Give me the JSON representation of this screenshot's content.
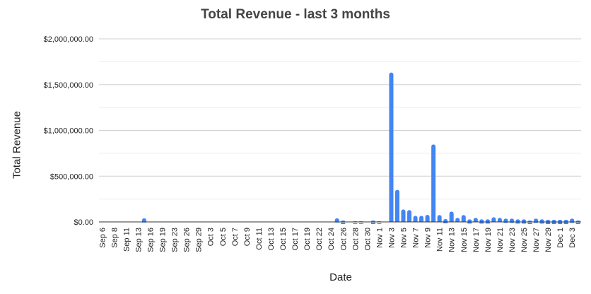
{
  "chart_data": {
    "type": "bar",
    "title": "Total Revenue - last 3 months",
    "xlabel": "Date",
    "ylabel": "Total Revenue",
    "ylim": [
      0,
      2000000
    ],
    "y_ticks": [
      0,
      500000,
      1000000,
      1500000,
      2000000
    ],
    "y_tick_labels": [
      "$0.00",
      "$500,000.00",
      "$1,000,000.00",
      "$1,500,000.00",
      "$2,000,000.00"
    ],
    "grid": true,
    "legend": "none",
    "bar_color": "#4285f4",
    "x_tick_labels": [
      "Sep 6",
      "Sep 8",
      "Sep 11",
      "Sep 13",
      "Sep 16",
      "Sep 19",
      "Sep 23",
      "Sep 26",
      "Sep 29",
      "Oct 3",
      "Oct 5",
      "Oct 7",
      "Oct 9",
      "Oct 11",
      "Oct 13",
      "Oct 15",
      "Oct 17",
      "Oct 19",
      "Oct 22",
      "Oct 24",
      "Oct 26",
      "Oct 28",
      "Oct 30",
      "Nov 1",
      "Nov 3",
      "Nov 5",
      "Nov 7",
      "Nov 9",
      "Nov 11",
      "Nov 13",
      "Nov 15",
      "Nov 17",
      "Nov 19",
      "Nov 21",
      "Nov 23",
      "Nov 25",
      "Nov 27",
      "Nov 29",
      "Dec 1",
      "Dec 3"
    ],
    "values": [
      0,
      0,
      0,
      0,
      0,
      0,
      0,
      40000,
      0,
      0,
      0,
      0,
      0,
      0,
      0,
      0,
      0,
      0,
      0,
      0,
      0,
      0,
      0,
      0,
      0,
      0,
      0,
      0,
      0,
      0,
      0,
      0,
      0,
      0,
      0,
      0,
      0,
      0,
      0,
      40000,
      15000,
      0,
      8000,
      8000,
      0,
      15000,
      8000,
      0,
      1632000,
      350000,
      136000,
      129000,
      67000,
      67000,
      77000,
      847000,
      75000,
      31000,
      113000,
      44000,
      75000,
      28000,
      44000,
      28000,
      28000,
      51000,
      44000,
      36000,
      36000,
      28000,
      28000,
      15000,
      36000,
      28000,
      23000,
      23000,
      23000,
      23000,
      36000,
      15000
    ]
  }
}
